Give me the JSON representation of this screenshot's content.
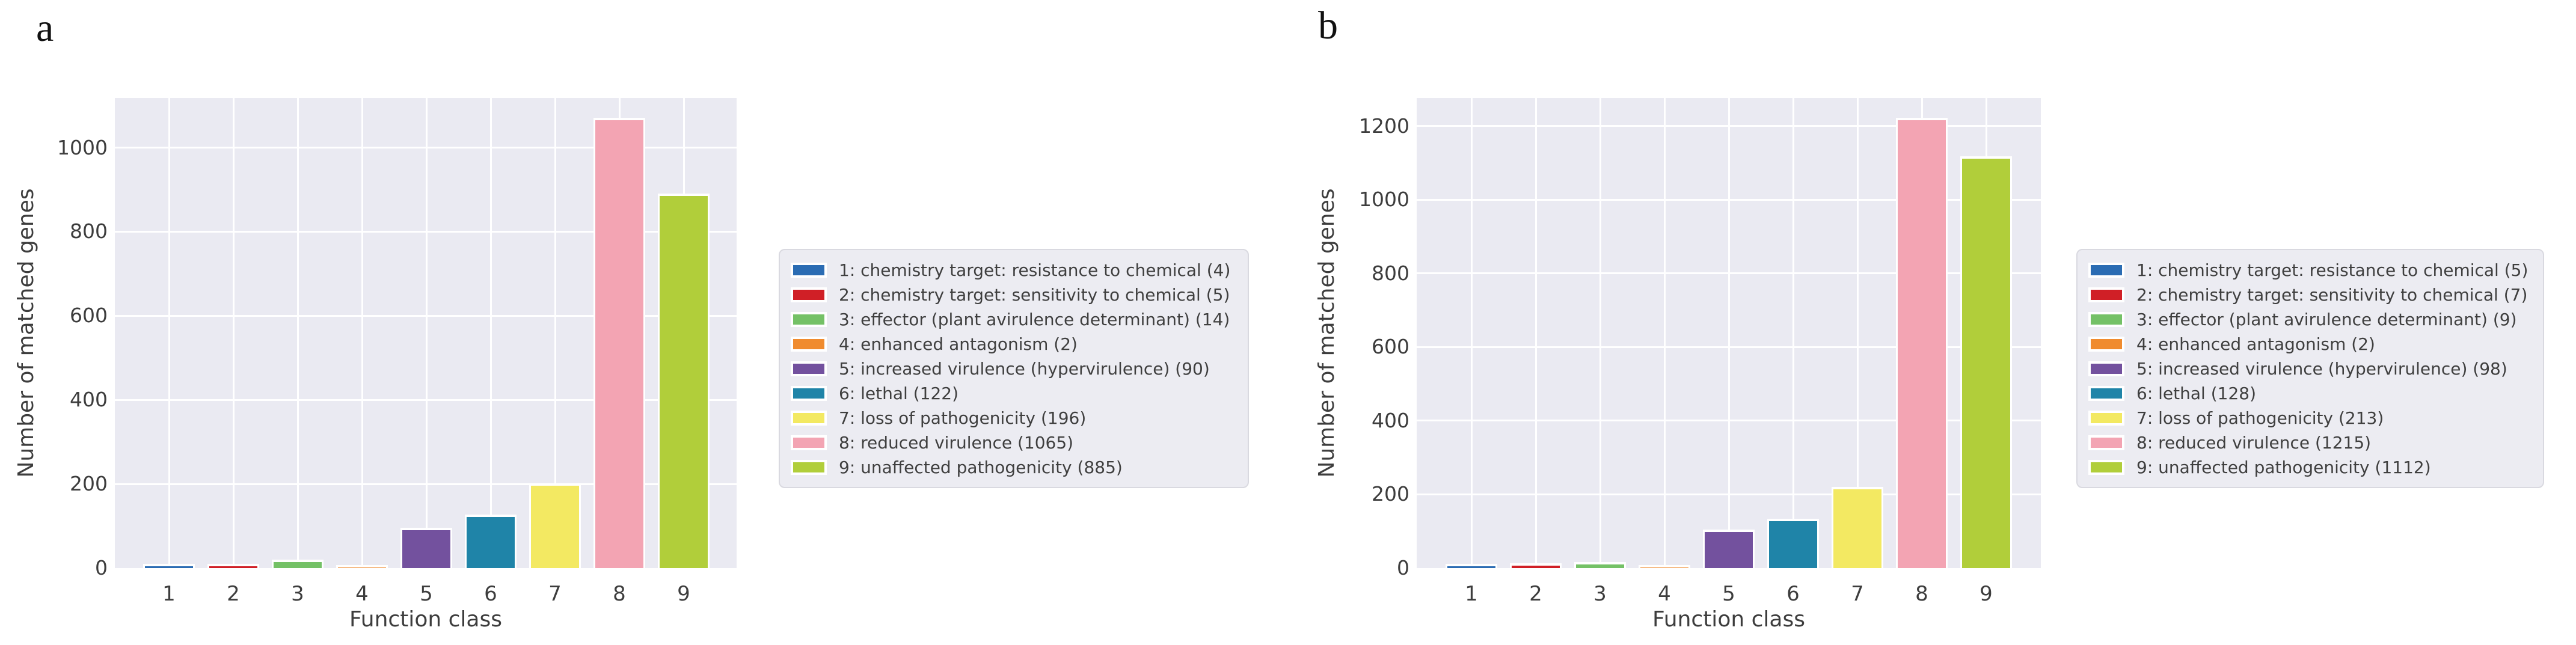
{
  "figure": {
    "background": "#ffffff",
    "plot_background": "#eaeaf2",
    "grid_color": "#ffffff",
    "text_color": "#3d3d3d",
    "legend_background": "#ececf2",
    "legend_border": "#d9d9e0"
  },
  "chart_data": [
    {
      "type": "bar",
      "panel_label": "a",
      "xlabel": "Function class",
      "ylabel": "Number of matched genes",
      "categories": [
        "1",
        "2",
        "3",
        "4",
        "5",
        "6",
        "7",
        "8",
        "9"
      ],
      "values": [
        4,
        5,
        14,
        2,
        90,
        122,
        196,
        1065,
        885
      ],
      "colors": [
        "#2b6cb3",
        "#d01f26",
        "#74c166",
        "#f08b2e",
        "#73519e",
        "#1f84a8",
        "#f3e962",
        "#f3a4b3",
        "#b1ce3a"
      ],
      "yticks": [
        0,
        200,
        400,
        600,
        800,
        1000
      ],
      "ylim": [
        0,
        1118
      ],
      "grid": true,
      "legend_position": "center right",
      "legend_entries": [
        "1: chemistry target: resistance to chemical (4)",
        "2: chemistry target: sensitivity to chemical (5)",
        "3: effector (plant avirulence determinant) (14)",
        "4: enhanced antagonism (2)",
        "5: increased virulence (hypervirulence) (90)",
        "6: lethal (122)",
        "7: loss of pathogenicity (196)",
        "8: reduced virulence (1065)",
        "9: unaffected pathogenicity (885)"
      ]
    },
    {
      "type": "bar",
      "panel_label": "b",
      "xlabel": "Function class",
      "ylabel": "Number of matched genes",
      "categories": [
        "1",
        "2",
        "3",
        "4",
        "5",
        "6",
        "7",
        "8",
        "9"
      ],
      "values": [
        5,
        7,
        9,
        2,
        98,
        128,
        213,
        1215,
        1112
      ],
      "colors": [
        "#2b6cb3",
        "#d01f26",
        "#74c166",
        "#f08b2e",
        "#73519e",
        "#1f84a8",
        "#f3e962",
        "#f3a4b3",
        "#b1ce3a"
      ],
      "yticks": [
        0,
        200,
        400,
        600,
        800,
        1000,
        1200
      ],
      "ylim": [
        0,
        1276
      ],
      "grid": true,
      "legend_position": "center right",
      "legend_entries": [
        "1: chemistry target: resistance to chemical (5)",
        "2: chemistry target: sensitivity to chemical (7)",
        "3: effector (plant avirulence determinant) (9)",
        "4: enhanced antagonism (2)",
        "5: increased virulence (hypervirulence) (98)",
        "6: lethal (128)",
        "7: loss of pathogenicity (213)",
        "8: reduced virulence (1215)",
        "9: unaffected pathogenicity (1112)"
      ]
    }
  ]
}
